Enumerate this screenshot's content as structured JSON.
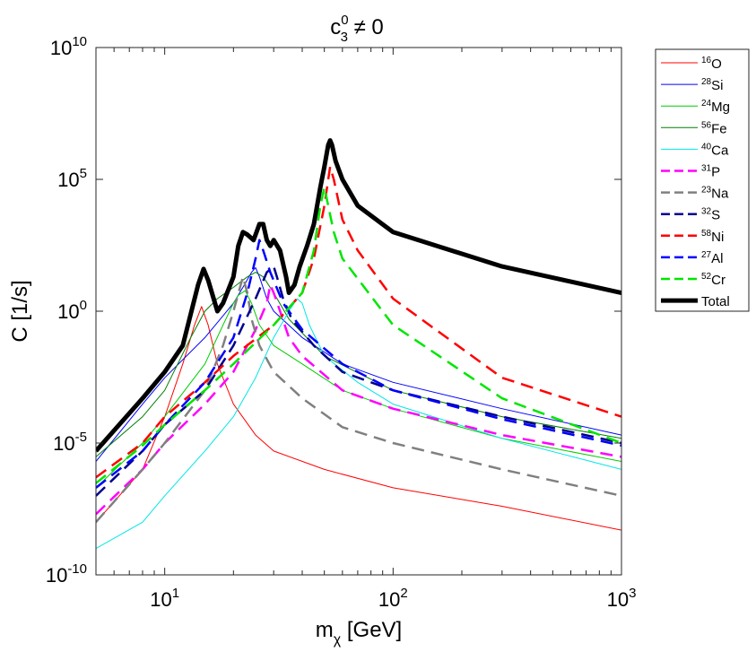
{
  "chart_data": {
    "type": "line",
    "title": {
      "base": "c",
      "sup": "0",
      "sub": "3",
      "rest": " ≠ 0"
    },
    "xlabel": {
      "base": "m",
      "sub": "χ",
      "rest": " [GeV]"
    },
    "ylabel": "C [1/s]",
    "xscale": "log",
    "yscale": "log",
    "xlim": [
      5,
      1000
    ],
    "ylim": [
      1e-10,
      10000000000.0
    ],
    "grid": false,
    "legend_position": "outside-right",
    "xticks": [
      {
        "value": 10,
        "base": "10",
        "exp": "1"
      },
      {
        "value": 100,
        "base": "10",
        "exp": "2"
      },
      {
        "value": 1000,
        "base": "10",
        "exp": "3"
      }
    ],
    "yticks": [
      {
        "value": 1e-10,
        "base": "10",
        "exp": "-10"
      },
      {
        "value": 1e-05,
        "base": "10",
        "exp": "-5"
      },
      {
        "value": 1,
        "base": "10",
        "exp": "0"
      },
      {
        "value": 100000.0,
        "base": "10",
        "exp": "5"
      },
      {
        "value": 10000000000.0,
        "base": "10",
        "exp": "10"
      }
    ],
    "series": [
      {
        "name": "O",
        "mass_number": "16",
        "color": "#ff0000",
        "style": "solid",
        "width": 1,
        "points": [
          [
            5,
            1e-08
          ],
          [
            8,
            1e-06
          ],
          [
            10,
            0.0001
          ],
          [
            12,
            0.01
          ],
          [
            13.5,
            0.3
          ],
          [
            14.5,
            1.5
          ],
          [
            15.5,
            0.3
          ],
          [
            17,
            0.01
          ],
          [
            20,
            0.0003
          ],
          [
            25,
            2e-05
          ],
          [
            30,
            5e-06
          ],
          [
            50,
            1e-06
          ],
          [
            100,
            2e-07
          ],
          [
            300,
            4e-08
          ],
          [
            1000,
            5e-09
          ]
        ]
      },
      {
        "name": "Si",
        "mass_number": "28",
        "color": "#0000ff",
        "style": "solid",
        "width": 1,
        "points": [
          [
            5,
            2e-06
          ],
          [
            8,
            0.0003
          ],
          [
            10,
            0.003
          ],
          [
            15,
            0.1
          ],
          [
            20,
            2
          ],
          [
            22,
            8
          ],
          [
            24,
            30
          ],
          [
            25,
            45
          ],
          [
            26,
            20
          ],
          [
            28,
            3
          ],
          [
            30,
            1
          ],
          [
            40,
            0.1
          ],
          [
            60,
            0.01
          ],
          [
            100,
            0.002
          ],
          [
            300,
            0.0002
          ],
          [
            1000,
            2e-05
          ]
        ]
      },
      {
        "name": "Mg",
        "mass_number": "24",
        "color": "#00cc00",
        "style": "solid",
        "width": 1,
        "points": [
          [
            5,
            2e-07
          ],
          [
            8,
            1e-05
          ],
          [
            10,
            0.0001
          ],
          [
            15,
            0.01
          ],
          [
            18,
            0.3
          ],
          [
            20,
            2
          ],
          [
            21,
            4
          ],
          [
            22.5,
            6
          ],
          [
            24,
            2
          ],
          [
            26,
            0.3
          ],
          [
            30,
            0.05
          ],
          [
            40,
            0.01
          ],
          [
            60,
            0.001
          ],
          [
            100,
            0.0002
          ],
          [
            300,
            1.5e-05
          ],
          [
            1000,
            2e-06
          ]
        ]
      },
      {
        "name": "Fe",
        "mass_number": "56",
        "color": "#008000",
        "style": "solid",
        "width": 1,
        "points": [
          [
            5,
            3e-06
          ],
          [
            8,
            0.0001
          ],
          [
            10,
            0.001
          ],
          [
            13,
            0.1
          ],
          [
            15,
            1
          ],
          [
            17,
            3
          ],
          [
            20,
            8
          ],
          [
            23,
            20
          ],
          [
            25,
            30
          ],
          [
            27,
            20
          ],
          [
            30,
            5
          ],
          [
            35,
            0.5
          ],
          [
            50,
            0.02
          ],
          [
            100,
            0.001
          ],
          [
            300,
            0.0001
          ],
          [
            1000,
            1.5e-05
          ]
        ]
      },
      {
        "name": "Ca",
        "mass_number": "40",
        "color": "#00e6e6",
        "style": "solid",
        "width": 1,
        "points": [
          [
            5,
            1e-09
          ],
          [
            8,
            1e-08
          ],
          [
            10,
            1e-07
          ],
          [
            15,
            5e-06
          ],
          [
            20,
            0.0001
          ],
          [
            25,
            0.003
          ],
          [
            30,
            0.1
          ],
          [
            35,
            1
          ],
          [
            38,
            3
          ],
          [
            40,
            2
          ],
          [
            43,
            0.3
          ],
          [
            50,
            0.02
          ],
          [
            70,
            0.002
          ],
          [
            100,
            0.0003
          ],
          [
            300,
            1.5e-05
          ],
          [
            1000,
            1e-06
          ]
        ]
      },
      {
        "name": "P",
        "mass_number": "31",
        "color": "#ff00ff",
        "style": "dashed",
        "width": 2.5,
        "points": [
          [
            5,
            2e-08
          ],
          [
            8,
            1e-06
          ],
          [
            10,
            1e-05
          ],
          [
            15,
            0.0003
          ],
          [
            20,
            0.005
          ],
          [
            25,
            0.2
          ],
          [
            28,
            2
          ],
          [
            29,
            10
          ],
          [
            30,
            5
          ],
          [
            32,
            1
          ],
          [
            35,
            0.1
          ],
          [
            40,
            0.02
          ],
          [
            60,
            0.001
          ],
          [
            100,
            0.0002
          ],
          [
            300,
            2e-05
          ],
          [
            1000,
            3e-06
          ]
        ]
      },
      {
        "name": "Na",
        "mass_number": "23",
        "color": "#808080",
        "style": "dashed",
        "width": 2.5,
        "points": [
          [
            5,
            1e-08
          ],
          [
            8,
            1e-06
          ],
          [
            10,
            1e-05
          ],
          [
            15,
            0.001
          ],
          [
            18,
            0.05
          ],
          [
            20,
            1
          ],
          [
            22,
            20
          ],
          [
            23,
            5
          ],
          [
            24,
            0.5
          ],
          [
            26,
            0.05
          ],
          [
            30,
            0.005
          ],
          [
            40,
            0.0005
          ],
          [
            60,
            4e-05
          ],
          [
            100,
            1e-05
          ],
          [
            300,
            1e-06
          ],
          [
            1000,
            1e-07
          ]
        ]
      },
      {
        "name": "S",
        "mass_number": "32",
        "color": "#00008b",
        "style": "dashed",
        "width": 2.5,
        "points": [
          [
            5,
            1e-07
          ],
          [
            8,
            5e-06
          ],
          [
            10,
            5e-05
          ],
          [
            15,
            0.001
          ],
          [
            20,
            0.05
          ],
          [
            25,
            3
          ],
          [
            28,
            30
          ],
          [
            30,
            50
          ],
          [
            31,
            20
          ],
          [
            33,
            3
          ],
          [
            36,
            0.5
          ],
          [
            45,
            0.05
          ],
          [
            60,
            0.005
          ],
          [
            100,
            0.001
          ],
          [
            300,
            0.0001
          ],
          [
            1000,
            1e-05
          ]
        ]
      },
      {
        "name": "Ni",
        "mass_number": "58",
        "color": "#ff0000",
        "style": "dashed",
        "width": 2.5,
        "points": [
          [
            5,
            5e-07
          ],
          [
            8,
            1e-05
          ],
          [
            10,
            0.0001
          ],
          [
            15,
            0.002
          ],
          [
            20,
            0.02
          ],
          [
            30,
            0.3
          ],
          [
            40,
            5
          ],
          [
            45,
            100
          ],
          [
            50,
            10000.0
          ],
          [
            53,
            300000.0
          ],
          [
            55,
            100000.0
          ],
          [
            60,
            3000.0
          ],
          [
            70,
            200
          ],
          [
            100,
            3
          ],
          [
            300,
            0.003
          ],
          [
            1000,
            0.0001
          ]
        ]
      },
      {
        "name": "Al",
        "mass_number": "27",
        "color": "#0000ff",
        "style": "dashed",
        "width": 2.5,
        "points": [
          [
            5,
            2e-07
          ],
          [
            8,
            5e-06
          ],
          [
            10,
            5e-05
          ],
          [
            15,
            0.002
          ],
          [
            20,
            0.1
          ],
          [
            23,
            5
          ],
          [
            25,
            100
          ],
          [
            26,
            500
          ],
          [
            27,
            200
          ],
          [
            29,
            30
          ],
          [
            33,
            2
          ],
          [
            40,
            0.2
          ],
          [
            60,
            0.01
          ],
          [
            100,
            0.001
          ],
          [
            300,
            8e-05
          ],
          [
            1000,
            8e-06
          ]
        ]
      },
      {
        "name": "Cr",
        "mass_number": "52",
        "color": "#00e600",
        "style": "dashed",
        "width": 2.5,
        "points": [
          [
            5,
            3e-07
          ],
          [
            8,
            8e-06
          ],
          [
            10,
            5e-05
          ],
          [
            15,
            0.001
          ],
          [
            20,
            0.01
          ],
          [
            30,
            0.3
          ],
          [
            40,
            5
          ],
          [
            45,
            200
          ],
          [
            48,
            10000.0
          ],
          [
            50,
            50000.0
          ],
          [
            52,
            10000.0
          ],
          [
            55,
            1000.0
          ],
          [
            60,
            100
          ],
          [
            100,
            0.3
          ],
          [
            300,
            0.0005
          ],
          [
            1000,
            1e-05
          ]
        ]
      },
      {
        "name": "Total",
        "mass_number": "",
        "color": "#000000",
        "style": "solid",
        "width": 5,
        "points": [
          [
            5,
            5e-06
          ],
          [
            8,
            0.0005
          ],
          [
            10,
            0.005
          ],
          [
            12,
            0.05
          ],
          [
            14,
            10
          ],
          [
            14.8,
            40
          ],
          [
            15.5,
            15
          ],
          [
            17,
            1
          ],
          [
            18,
            2
          ],
          [
            20,
            20
          ],
          [
            21,
            300
          ],
          [
            22,
            1000
          ],
          [
            23,
            800
          ],
          [
            24.5,
            500
          ],
          [
            26,
            2000
          ],
          [
            27,
            2000
          ],
          [
            28,
            500
          ],
          [
            29,
            300
          ],
          [
            30,
            500
          ],
          [
            32,
            200
          ],
          [
            34,
            20
          ],
          [
            35,
            5
          ],
          [
            37,
            10
          ],
          [
            39,
            50
          ],
          [
            42,
            300
          ],
          [
            45,
            2000
          ],
          [
            48,
            50000.0
          ],
          [
            50,
            300000.0
          ],
          [
            52,
            2000000.0
          ],
          [
            53,
            3000000.0
          ],
          [
            54,
            2000000.0
          ],
          [
            56,
            500000.0
          ],
          [
            60,
            100000.0
          ],
          [
            70,
            10000.0
          ],
          [
            100,
            1000.0
          ],
          [
            300,
            50
          ],
          [
            1000,
            5
          ]
        ]
      }
    ]
  }
}
